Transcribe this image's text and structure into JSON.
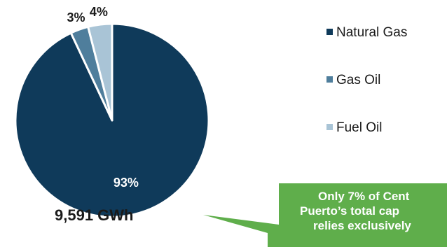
{
  "chart_data": {
    "type": "pie",
    "slices": [
      {
        "name": "Natural Gas",
        "value": 93,
        "label": "93%",
        "color": "#0f3a5a"
      },
      {
        "name": "Gas Oil",
        "value": 3,
        "label": "3%",
        "color": "#4f7e9c"
      },
      {
        "name": "Fuel Oil",
        "value": 4,
        "label": "4%",
        "color": "#a9c4d6"
      }
    ],
    "total_label": "9,591 GWh",
    "legend_placement": "right"
  },
  "callout": {
    "line1": "Only 7% of Cent",
    "line2": "Puerto’s total cap",
    "line3": "relies exclusively",
    "color": "#5fae4b"
  }
}
